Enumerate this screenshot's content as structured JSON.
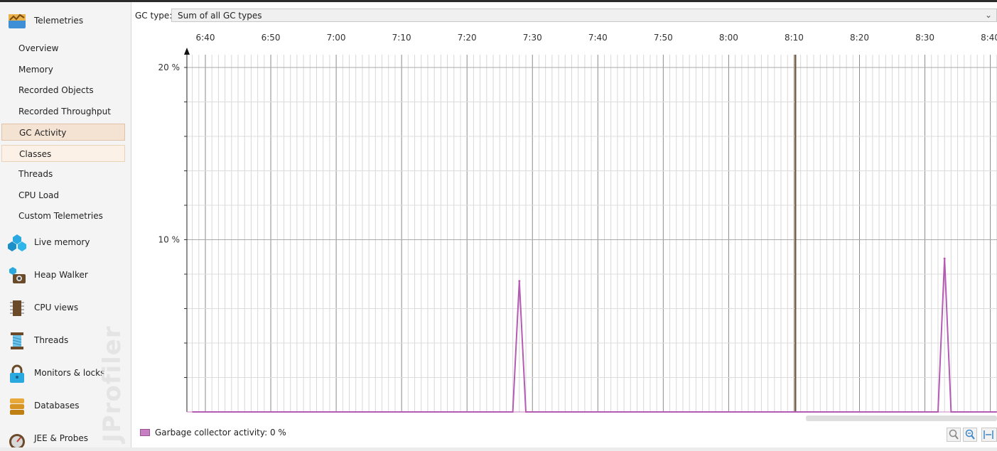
{
  "sidebar": {
    "telemetries": {
      "label": "Telemetries",
      "icon": "telemetries-icon"
    },
    "telemetry_items": [
      {
        "label": "Overview",
        "state": "normal"
      },
      {
        "label": "Memory",
        "state": "normal"
      },
      {
        "label": "Recorded Objects",
        "state": "normal"
      },
      {
        "label": "Recorded Throughput",
        "state": "normal"
      },
      {
        "label": "GC Activity",
        "state": "selected"
      },
      {
        "label": "Classes",
        "state": "hover"
      },
      {
        "label": "Threads",
        "state": "normal"
      },
      {
        "label": "CPU Load",
        "state": "normal"
      },
      {
        "label": "Custom Telemetries",
        "state": "normal"
      }
    ],
    "sections": [
      {
        "label": "Live memory",
        "icon": "live-memory-icon"
      },
      {
        "label": "Heap Walker",
        "icon": "heap-walker-icon"
      },
      {
        "label": "CPU views",
        "icon": "cpu-views-icon"
      },
      {
        "label": "Threads",
        "icon": "threads-icon"
      },
      {
        "label": "Monitors & locks",
        "icon": "monitors-locks-icon"
      },
      {
        "label": "Databases",
        "icon": "databases-icon"
      },
      {
        "label": "JEE & Probes",
        "icon": "jee-probes-icon"
      }
    ],
    "watermark": "JProfiler"
  },
  "gc_type": {
    "label": "GC type:",
    "value": "Sum of all GC types"
  },
  "chart_data": {
    "type": "line",
    "x_ticks": [
      "6:40",
      "6:50",
      "7:00",
      "7:10",
      "7:20",
      "7:30",
      "7:40",
      "7:50",
      "8:00",
      "8:10",
      "8:20",
      "8:30",
      "8:40"
    ],
    "y_ticks": [
      "10 %",
      "20 %"
    ],
    "y_range": [
      0,
      21
    ],
    "series": [
      {
        "name": "Garbage collector activity",
        "color": "#b65bb3",
        "x": [
          "6:38",
          "7:27",
          "7:28",
          "7:29",
          "8:32",
          "8:33",
          "8:34",
          "8:41"
        ],
        "values": [
          0,
          0,
          7.6,
          0,
          0,
          8.9,
          0,
          0
        ]
      }
    ],
    "highlight_x": "8:10",
    "grid": true
  },
  "legend": {
    "text": "Garbage collector activity: 0 %",
    "color": "#c77fc4"
  },
  "zoom": [
    "zoom-in-icon",
    "zoom-out-icon",
    "zoom-fit-icon"
  ]
}
